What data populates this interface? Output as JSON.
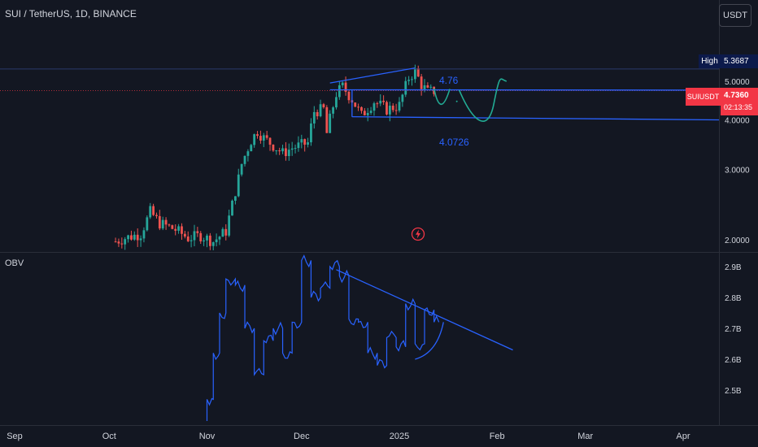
{
  "header": {
    "title": "SUI / TetherUS, 1D, BINANCE"
  },
  "toolbar": {
    "currency_button": "USDT"
  },
  "markers": {
    "high_label": "High",
    "high_value": "5.3687",
    "symbol_label": "SUIUSDT",
    "last_price": "4.7360",
    "countdown": "02:13:35"
  },
  "annotations": {
    "upper_level": "4.76",
    "lower_level": "4.0726"
  },
  "colors": {
    "bullish": "#26a69a",
    "bearish": "#ef5350",
    "drawing": "#2962ff",
    "projection": "#22ab94",
    "price_tag": "#f23645"
  },
  "chart_data": [
    {
      "type": "candlestick",
      "title": "SUI / TetherUS, 1D, BINANCE",
      "yscale": "log",
      "ylim": [
        1.85,
        6.2
      ],
      "y_ticks": [
        "2.0000",
        "3.0000",
        "4.0000",
        "5.0000"
      ],
      "x_ticks": [
        "Sep",
        "Oct",
        "Nov",
        "Dec",
        "2025",
        "Feb",
        "Mar",
        "Apr"
      ],
      "series_shape_approx": [
        [
          "Oct 3",
          1.98
        ],
        [
          "Oct 6",
          2.02
        ],
        [
          "Oct 11",
          2.07
        ],
        [
          "Oct 13",
          2.25
        ],
        [
          "Oct 14",
          2.35
        ],
        [
          "Oct 17",
          2.2
        ],
        [
          "Oct 22",
          2.12
        ],
        [
          "Oct 26",
          2.02
        ],
        [
          "Oct 30",
          2.05
        ],
        [
          "Nov 3",
          1.98
        ],
        [
          "Nov 7",
          2.1
        ],
        [
          "Nov 9",
          2.45
        ],
        [
          "Nov 11",
          2.85
        ],
        [
          "Nov 12",
          3.1
        ],
        [
          "Nov 15",
          3.55
        ],
        [
          "Nov 17",
          3.75
        ],
        [
          "Nov 19",
          3.6
        ],
        [
          "Nov 22",
          3.45
        ],
        [
          "Nov 25",
          3.3
        ],
        [
          "Nov 28",
          3.4
        ],
        [
          "Dec 3",
          3.5
        ],
        [
          "Dec 5",
          4.2
        ],
        [
          "Dec 8",
          4.25
        ],
        [
          "Dec 9",
          3.7
        ],
        [
          "Dec 12",
          4.65
        ],
        [
          "Dec 14",
          4.85
        ],
        [
          "Dec 17",
          4.5
        ],
        [
          "Dec 20",
          4.1
        ],
        [
          "Dec 24",
          4.45
        ],
        [
          "Dec 28",
          4.25
        ],
        [
          "Jan 1",
          4.35
        ],
        [
          "Jan 4",
          5.1
        ],
        [
          "Jan 6",
          5.3
        ],
        [
          "Jan 8",
          4.9
        ],
        [
          "Jan 10",
          4.7
        ],
        [
          "Jan 12",
          4.73
        ]
      ],
      "last_price": 4.736,
      "high": 5.3687,
      "levels": [
        4.76,
        4.0726
      ]
    },
    {
      "type": "line",
      "title": "OBV",
      "ylim": [
        2.45,
        2.95
      ],
      "y_ticks": [
        "2.5B",
        "2.6B",
        "2.7B",
        "2.8B",
        "2.9B"
      ],
      "series": [
        {
          "name": "OBV",
          "x": [
            "Nov 1",
            "Nov 3",
            "Nov 5",
            "Nov 7",
            "Nov 10",
            "Nov 13",
            "Nov 16",
            "Nov 19",
            "Nov 22",
            "Nov 25",
            "Nov 28",
            "Dec 1",
            "Dec 4",
            "Dec 7",
            "Dec 10",
            "Dec 13",
            "Dec 16",
            "Dec 19",
            "Dec 22",
            "Dec 25",
            "Dec 28",
            "Dec 31",
            "Jan 3",
            "Jan 6",
            "Jan 9",
            "Jan 12"
          ],
          "values": [
            2.47,
            2.62,
            2.75,
            2.86,
            2.84,
            2.7,
            2.55,
            2.66,
            2.7,
            2.62,
            2.72,
            2.92,
            2.8,
            2.83,
            2.9,
            2.87,
            2.73,
            2.72,
            2.62,
            2.58,
            2.67,
            2.64,
            2.78,
            2.65,
            2.76,
            2.72
          ]
        }
      ]
    }
  ]
}
